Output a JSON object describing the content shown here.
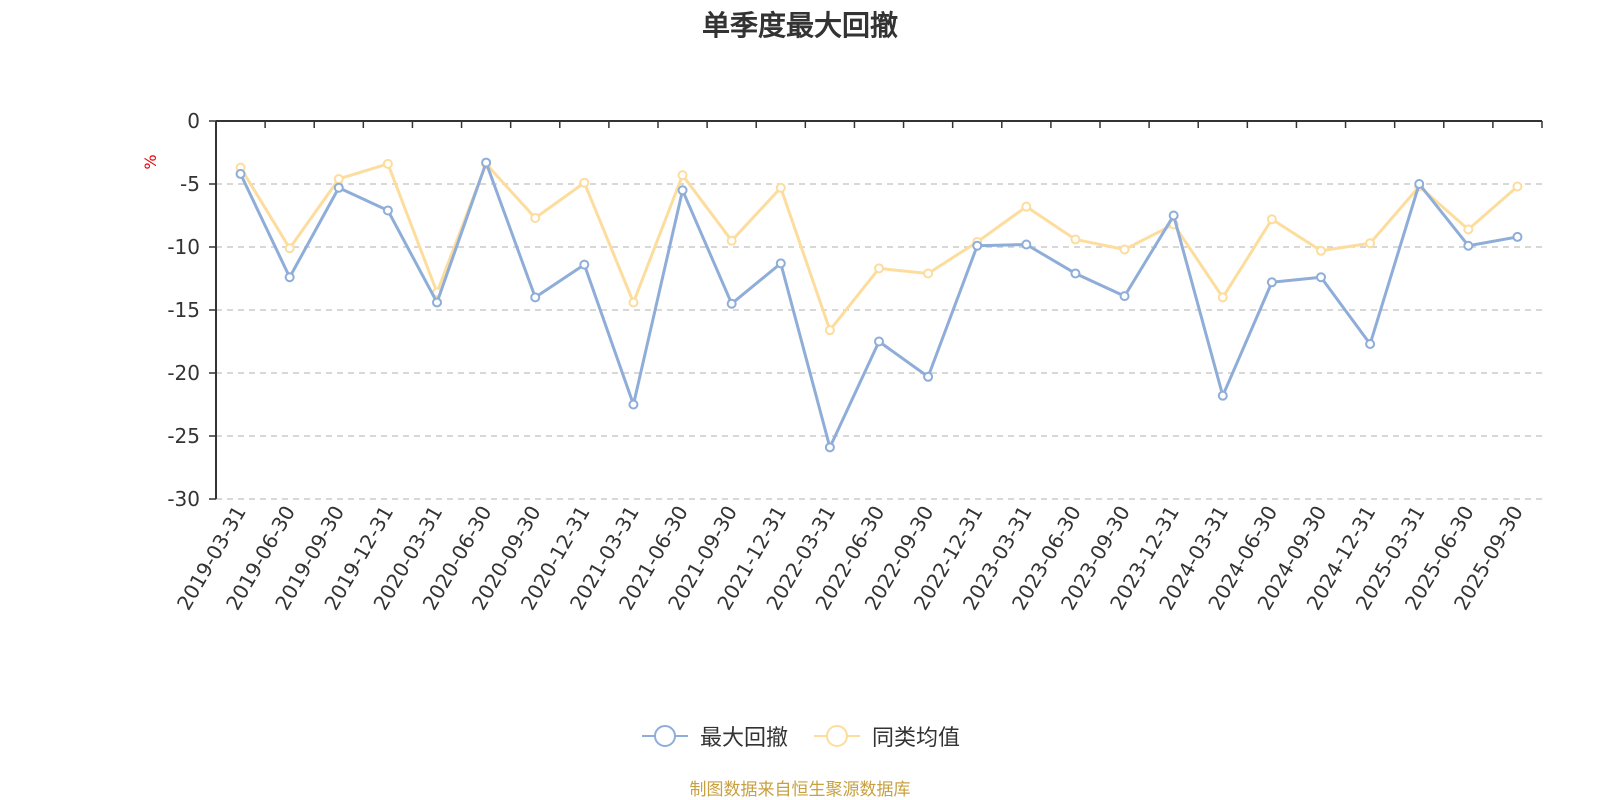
{
  "chart_data": {
    "type": "line",
    "title": "单季度最大回撤",
    "ylabel": "%",
    "xlabel": "",
    "ylim": [
      -30,
      0
    ],
    "yticks": [
      0,
      -5,
      -10,
      -15,
      -20,
      -25,
      -30
    ],
    "grid": true,
    "legend_position": "bottom-center",
    "categories": [
      "2019-03-31",
      "2019-06-30",
      "2019-09-30",
      "2019-12-31",
      "2020-03-31",
      "2020-06-30",
      "2020-09-30",
      "2020-12-31",
      "2021-03-31",
      "2021-06-30",
      "2021-09-30",
      "2021-12-31",
      "2022-03-31",
      "2022-06-30",
      "2022-09-30",
      "2022-12-31",
      "2023-03-31",
      "2023-06-30",
      "2023-09-30",
      "2023-12-31",
      "2024-03-31",
      "2024-06-30",
      "2024-09-30",
      "2024-12-31",
      "2025-03-31",
      "2025-06-30",
      "2025-09-30"
    ],
    "series": [
      {
        "name": "最大回撤",
        "color": "#8eadd8",
        "values": [
          -4.2,
          -12.4,
          -5.3,
          -7.1,
          -14.4,
          -3.3,
          -14.0,
          -11.4,
          -22.5,
          -5.5,
          -14.5,
          -11.3,
          -25.9,
          -17.5,
          -20.3,
          -9.9,
          -9.8,
          -12.1,
          -13.9,
          -7.5,
          -21.8,
          -12.8,
          -12.4,
          -17.7,
          -5.0,
          -9.9,
          -9.2
        ]
      },
      {
        "name": "同类均值",
        "color": "#fddd9e",
        "values": [
          -3.7,
          -10.1,
          -4.6,
          -3.4,
          -13.6,
          -3.4,
          -7.7,
          -4.9,
          -14.4,
          -4.3,
          -9.5,
          -5.3,
          -16.6,
          -11.7,
          -12.1,
          -9.6,
          -6.8,
          -9.4,
          -10.2,
          -8.2,
          -14.0,
          -7.8,
          -10.3,
          -9.7,
          -5.2,
          -8.6,
          -5.2
        ]
      }
    ]
  },
  "colors": {
    "title": "#333333",
    "axis": "#333333",
    "grid": "#cccccc",
    "unit_label": "#ee0000",
    "source_note": "#c8a040"
  },
  "source_note": "制图数据来自恒生聚源数据库"
}
